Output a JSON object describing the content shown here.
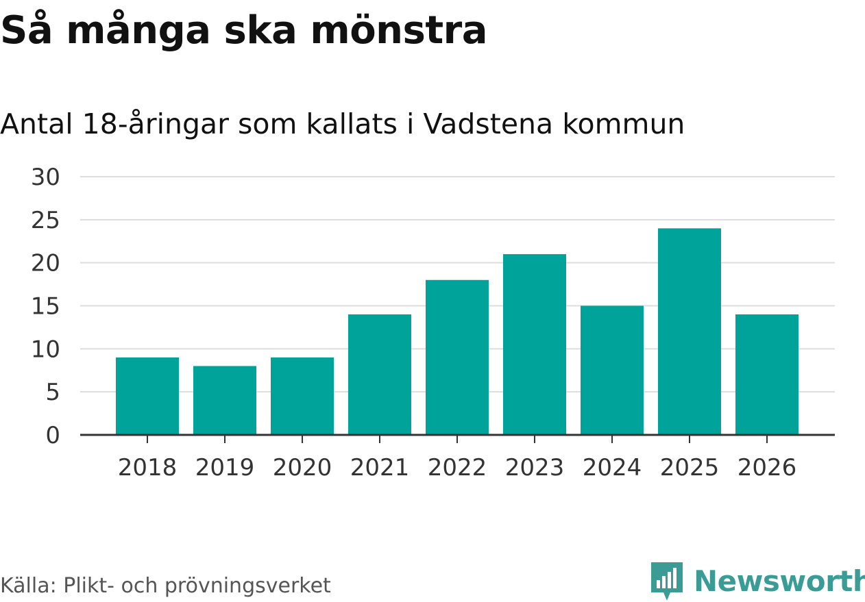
{
  "title": "Så många ska mönstra",
  "subtitle": "Antal 18-åringar som kallats i Vadstena kommun",
  "source": "Källa: Plikt- och prövningsverket",
  "brand": {
    "name": "Newsworthy",
    "icon": "newsworthy-logo-icon",
    "color": "#3a9c95"
  },
  "colors": {
    "bar": "#00a39a",
    "grid": "#dddddd",
    "axis": "#333333"
  },
  "chart_data": {
    "type": "bar",
    "categories": [
      "2018",
      "2019",
      "2020",
      "2021",
      "2022",
      "2023",
      "2024",
      "2025",
      "2026"
    ],
    "values": [
      9,
      8,
      9,
      14,
      18,
      21,
      15,
      24,
      14
    ],
    "ylim": [
      0,
      30
    ],
    "yticks": [
      0,
      5,
      10,
      15,
      20,
      25,
      30
    ],
    "grid": true,
    "legend": "none"
  }
}
